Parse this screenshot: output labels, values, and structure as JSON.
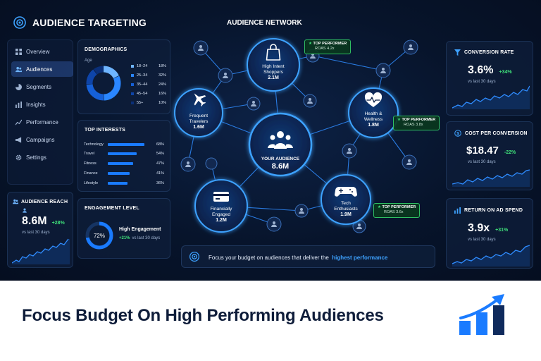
{
  "app": {
    "title": "AUDIENCE TARGETING"
  },
  "sidebar": {
    "items": [
      {
        "label": "Overview",
        "icon": "grid-icon",
        "active": false
      },
      {
        "label": "Audiences",
        "icon": "users-icon",
        "active": true
      },
      {
        "label": "Segments",
        "icon": "pie-icon",
        "active": false
      },
      {
        "label": "Insights",
        "icon": "bar-chart-icon",
        "active": false
      },
      {
        "label": "Performance",
        "icon": "trend-icon",
        "active": false
      },
      {
        "label": "Campaigns",
        "icon": "megaphone-icon",
        "active": false
      },
      {
        "label": "Settings",
        "icon": "gear-icon",
        "active": false
      }
    ]
  },
  "audience_reach": {
    "title": "AUDIENCE REACH",
    "value": "8.6M",
    "delta": "+28%",
    "period": "vs last 30 days"
  },
  "demographics": {
    "title": "DEMOGRAPHICS",
    "subtitle": "Age",
    "rows": [
      {
        "label": "18–24",
        "pct": "18%",
        "value": 18,
        "color": "#6fb5ff"
      },
      {
        "label": "25–34",
        "pct": "32%",
        "value": 32,
        "color": "#2a86ff"
      },
      {
        "label": "35–44",
        "pct": "24%",
        "value": 24,
        "color": "#1560d8"
      },
      {
        "label": "45–54",
        "pct": "16%",
        "value": 16,
        "color": "#0e44a8"
      },
      {
        "label": "55+",
        "pct": "10%",
        "value": 10,
        "color": "#0a2f78"
      }
    ]
  },
  "interests": {
    "title": "TOP INTERESTS",
    "rows": [
      {
        "label": "Technology",
        "pct": "68%",
        "value": 68
      },
      {
        "label": "Travel",
        "pct": "54%",
        "value": 54
      },
      {
        "label": "Fitness",
        "pct": "47%",
        "value": 47
      },
      {
        "label": "Finance",
        "pct": "41%",
        "value": 41
      },
      {
        "label": "Lifestyle",
        "pct": "36%",
        "value": 36
      }
    ]
  },
  "engagement": {
    "title": "ENGAGEMENT LEVEL",
    "ring_label": "72%",
    "value": 72,
    "level": "High Engagement",
    "delta": "+21%",
    "period": "vs last 30 days"
  },
  "network": {
    "title": "AUDIENCE NETWORK",
    "center": {
      "label": "YOUR AUDIENCE",
      "value": "8.6M"
    },
    "nodes": [
      {
        "label1": "High Intent",
        "label2": "Shoppers",
        "value": "2.1M",
        "icon": "shopping-bag-icon"
      },
      {
        "label1": "Frequent",
        "label2": "Travelers",
        "value": "1.6M",
        "icon": "airplane-icon"
      },
      {
        "label1": "Health &",
        "label2": "Wellness",
        "value": "1.8M",
        "icon": "heart-pulse-icon"
      },
      {
        "label1": "Financially",
        "label2": "Engaged",
        "value": "1.2M",
        "icon": "credit-card-icon"
      },
      {
        "label1": "Tech",
        "label2": "Enthusiasts",
        "value": "1.9M",
        "icon": "gamepad-icon"
      }
    ],
    "badges": [
      {
        "title": "TOP PERFORMER",
        "roas": "ROAS 4.2x"
      },
      {
        "title": "TOP PERFORMER",
        "roas": "ROAS 3.8x"
      },
      {
        "title": "TOP PERFORMER",
        "roas": "ROAS 3.6x"
      }
    ]
  },
  "focus_banner": {
    "text": "Focus your budget on audiences that deliver the",
    "highlight": "highest performance"
  },
  "kpis": [
    {
      "title": "CONVERSION RATE",
      "value": "3.6%",
      "delta": "+34%",
      "period": "vs last 30 days",
      "icon": "funnel-icon"
    },
    {
      "title": "COST PER CONVERSION",
      "value": "$18.47",
      "delta": "-22%",
      "period": "vs last 30 days",
      "icon": "dollar-icon"
    },
    {
      "title": "RETURN ON AD SPEND",
      "value": "3.9x",
      "delta": "+31%",
      "period": "vs last 30 days",
      "icon": "bar-chart-icon"
    }
  ],
  "caption": "Focus Budget On High Performing Audiences",
  "colors": {
    "accent": "#1a7bff",
    "positive": "#3fe07a",
    "background": "#07142b",
    "caption": "#0f1d3a"
  }
}
